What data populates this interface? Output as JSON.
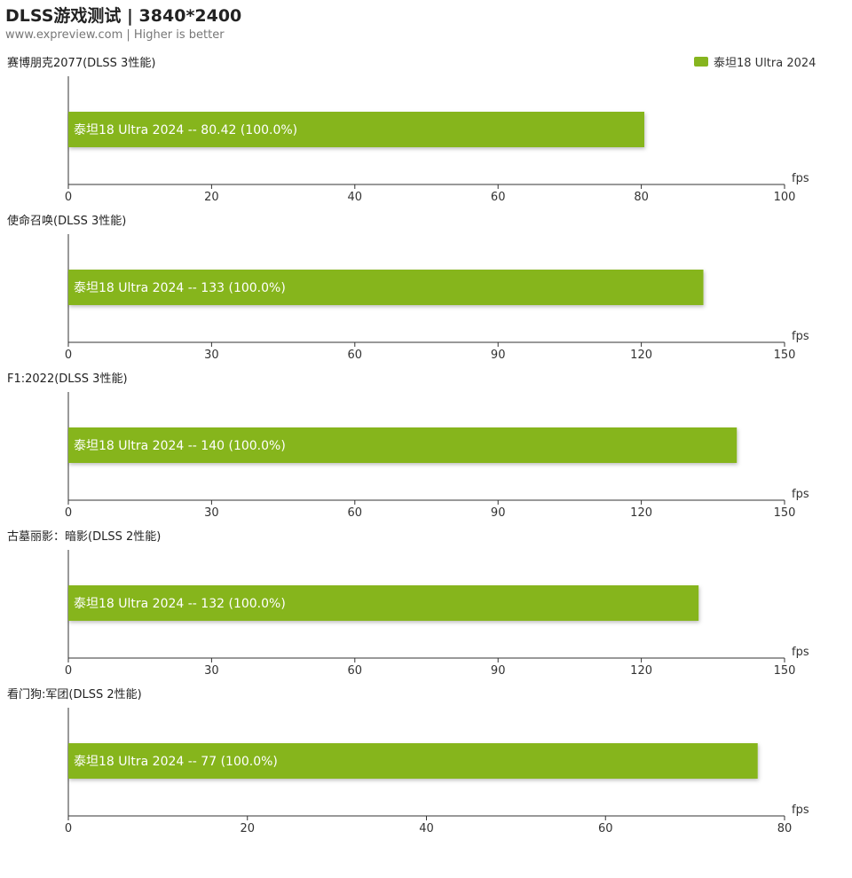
{
  "header": {
    "title": "DLSS游戏测试 | 3840*2400",
    "subtitle": "www.expreview.com | Higher is better"
  },
  "legend": {
    "label": "泰坦18 Ultra 2024",
    "color": "#86b51f"
  },
  "chart_data": [
    {
      "type": "bar",
      "title": "赛博朋克2077(DLSS 3性能)",
      "unit": "fps",
      "xlim": [
        0,
        100
      ],
      "ticks": [
        0,
        20,
        40,
        60,
        80,
        100
      ],
      "categories": [
        "泰坦18 Ultra 2024"
      ],
      "series": [
        {
          "name": "泰坦18 Ultra 2024",
          "values": [
            80.42
          ]
        }
      ],
      "data_labels": [
        "泰坦18 Ultra 2024  --  80.42 (100.0%)"
      ]
    },
    {
      "type": "bar",
      "title": "使命召唤(DLSS 3性能)",
      "unit": "fps",
      "xlim": [
        0,
        150
      ],
      "ticks": [
        0,
        30,
        60,
        90,
        120,
        150
      ],
      "categories": [
        "泰坦18 Ultra 2024"
      ],
      "series": [
        {
          "name": "泰坦18 Ultra 2024",
          "values": [
            133
          ]
        }
      ],
      "data_labels": [
        "泰坦18 Ultra 2024  --  133 (100.0%)"
      ]
    },
    {
      "type": "bar",
      "title": "F1:2022(DLSS 3性能)",
      "unit": "fps",
      "xlim": [
        0,
        150
      ],
      "ticks": [
        0,
        30,
        60,
        90,
        120,
        150
      ],
      "categories": [
        "泰坦18 Ultra 2024"
      ],
      "series": [
        {
          "name": "泰坦18 Ultra 2024",
          "values": [
            140
          ]
        }
      ],
      "data_labels": [
        "泰坦18 Ultra 2024  --  140 (100.0%)"
      ]
    },
    {
      "type": "bar",
      "title": "古墓丽影：暗影(DLSS 2性能)",
      "unit": "fps",
      "xlim": [
        0,
        150
      ],
      "ticks": [
        0,
        30,
        60,
        90,
        120,
        150
      ],
      "categories": [
        "泰坦18 Ultra 2024"
      ],
      "series": [
        {
          "name": "泰坦18 Ultra 2024",
          "values": [
            132
          ]
        }
      ],
      "data_labels": [
        "泰坦18 Ultra 2024  --  132 (100.0%)"
      ]
    },
    {
      "type": "bar",
      "title": "看门狗:军团(DLSS 2性能)",
      "unit": "fps",
      "xlim": [
        0,
        80
      ],
      "ticks": [
        0,
        20,
        40,
        60,
        80
      ],
      "categories": [
        "泰坦18 Ultra 2024"
      ],
      "series": [
        {
          "name": "泰坦18 Ultra 2024",
          "values": [
            77
          ]
        }
      ],
      "data_labels": [
        "泰坦18 Ultra 2024  --  77 (100.0%)"
      ]
    }
  ]
}
